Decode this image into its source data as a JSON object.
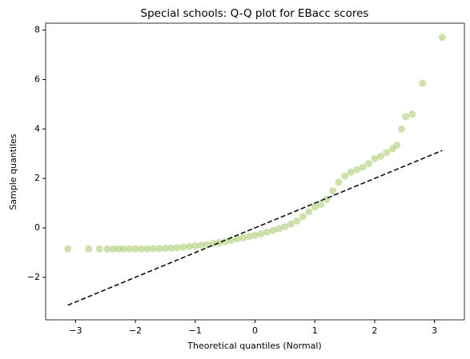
{
  "chart_data": {
    "type": "scatter",
    "title": "Special schools: Q-Q plot for EBacc scores",
    "x_label": "Theoretical quantiles (Normal)",
    "y_label": "Sample quantiles",
    "xlim": [
      -3.5,
      3.5
    ],
    "ylim": [
      -3.72,
      8.28
    ],
    "xticks": [
      {
        "value": -3,
        "label": "−3"
      },
      {
        "value": -2,
        "label": "−2"
      },
      {
        "value": -1,
        "label": "−1"
      },
      0,
      1,
      2,
      3
    ],
    "yticks": [
      {
        "value": -2,
        "label": "−2"
      },
      0,
      2,
      4,
      6,
      8
    ],
    "points": {
      "color": "#a6c96a",
      "x": [
        -3.13,
        -2.78,
        -2.6,
        -2.47,
        -2.37,
        -2.28,
        -2.2,
        -2.1,
        -2.0,
        -1.9,
        -1.8,
        -1.7,
        -1.6,
        -1.5,
        -1.4,
        -1.3,
        -1.2,
        -1.1,
        -1.0,
        -0.9,
        -0.8,
        -0.7,
        -0.6,
        -0.5,
        -0.4,
        -0.3,
        -0.2,
        -0.1,
        0,
        0.1,
        0.2,
        0.3,
        0.4,
        0.5,
        0.6,
        0.7,
        0.8,
        0.9,
        1.0,
        1.1,
        1.2,
        1.3,
        1.4,
        1.5,
        1.6,
        1.7,
        1.8,
        1.9,
        2.0,
        2.1,
        2.2,
        2.3,
        2.37,
        2.45,
        2.52,
        2.63,
        2.8,
        3.13
      ],
      "y": [
        -0.85,
        -0.85,
        -0.85,
        -0.85,
        -0.85,
        -0.85,
        -0.85,
        -0.85,
        -0.85,
        -0.85,
        -0.85,
        -0.84,
        -0.84,
        -0.83,
        -0.82,
        -0.8,
        -0.78,
        -0.75,
        -0.72,
        -0.7,
        -0.67,
        -0.63,
        -0.6,
        -0.56,
        -0.5,
        -0.45,
        -0.4,
        -0.35,
        -0.3,
        -0.24,
        -0.17,
        -0.1,
        -0.03,
        0.05,
        0.15,
        0.28,
        0.45,
        0.65,
        0.85,
        0.95,
        1.15,
        1.5,
        1.85,
        2.1,
        2.25,
        2.35,
        2.45,
        2.6,
        2.8,
        2.9,
        3.05,
        3.2,
        3.35,
        4.0,
        4.5,
        4.6,
        5.85,
        7.7
      ]
    },
    "reference_line": {
      "color": "#000000",
      "x": [
        -3.13,
        3.13
      ],
      "y": [
        -3.13,
        3.13
      ]
    }
  }
}
